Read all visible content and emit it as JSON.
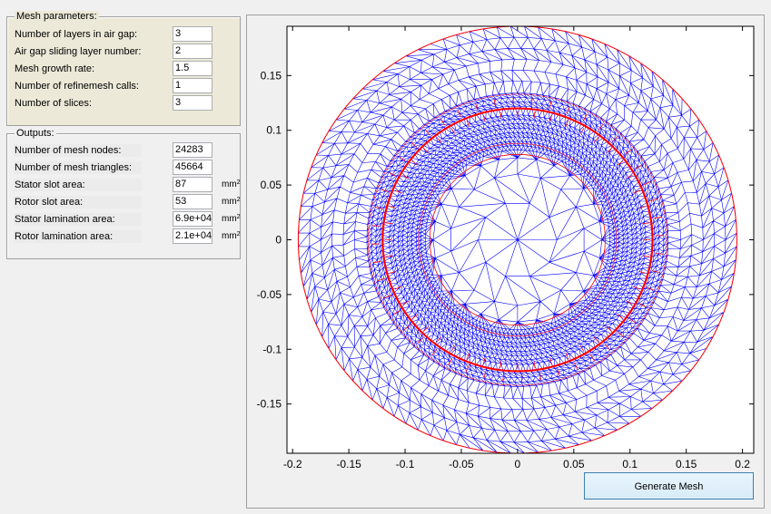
{
  "mesh_parameters": {
    "title": "Mesh parameters:",
    "rows": [
      {
        "label": "Number of layers in air gap:",
        "value": "3"
      },
      {
        "label": "Air gap sliding layer number:",
        "value": "2"
      },
      {
        "label": "Mesh growth rate:",
        "value": "1.5"
      },
      {
        "label": "Number of refinemesh calls:",
        "value": "1"
      },
      {
        "label": "Number of slices:",
        "value": "3"
      }
    ]
  },
  "outputs": {
    "title": "Outputs:",
    "rows": [
      {
        "label": "Number of mesh nodes:",
        "value": "24283",
        "unit": ""
      },
      {
        "label": "Number of mesh triangles:",
        "value": "45664",
        "unit": ""
      },
      {
        "label": "Stator slot area:",
        "value": "87",
        "unit": "mm",
        "unit_sup": "2"
      },
      {
        "label": "Rotor slot area:",
        "value": "53",
        "unit": "mm",
        "unit_sup": "2"
      },
      {
        "label": "Stator lamination area:",
        "value": "6.9e+04",
        "unit": "mm",
        "unit_sup": "2"
      },
      {
        "label": "Rotor lamination area:",
        "value": "2.1e+04",
        "unit": "mm",
        "unit_sup": "2"
      }
    ]
  },
  "plot": {
    "x_ticks": [
      "-0.2",
      "-0.15",
      "-0.1",
      "-0.05",
      "0",
      "0.05",
      "0.1",
      "0.15",
      "0.2"
    ],
    "x_tick_values": [
      -0.2,
      -0.15,
      -0.1,
      -0.05,
      0,
      0.05,
      0.1,
      0.15,
      0.2
    ],
    "y_ticks": [
      "0.15",
      "0.1",
      "0.05",
      "0",
      "-0.05",
      "-0.1",
      "-0.15"
    ],
    "y_tick_values": [
      0.15,
      0.1,
      0.05,
      0,
      -0.05,
      -0.1,
      -0.15
    ],
    "xlim": [
      -0.205,
      0.21
    ],
    "ylim": [
      -0.195,
      0.195
    ],
    "outer_radius": 0.195,
    "airgap_radius": 0.12,
    "mesh_color": "#0000ff",
    "boundary_color": "#ff0000"
  },
  "generate_button": {
    "label": "Generate Mesh"
  }
}
